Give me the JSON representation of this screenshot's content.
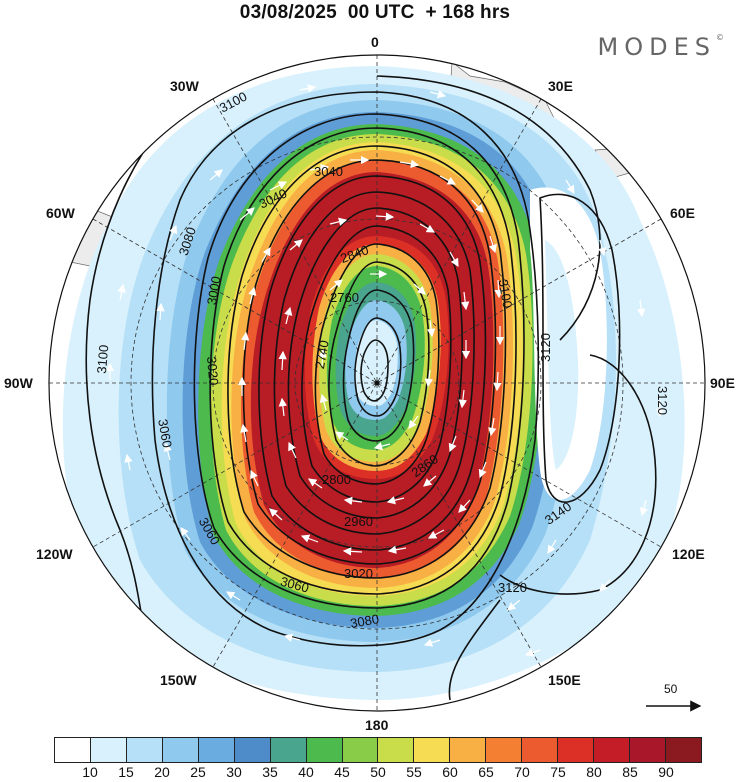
{
  "header": {
    "title": "03/08/2025  00 UTC  + 168 hrs",
    "brand": "MODES",
    "brand_mark": "©"
  },
  "map": {
    "projection": "south polar stereographic",
    "variable": "geopotential height contours with wind speed shading and wind vectors",
    "longitude_labels": {
      "lon_0": "0",
      "lon_30e": "30E",
      "lon_60e": "60E",
      "lon_90e": "90E",
      "lon_120e": "120E",
      "lon_150e": "150E",
      "lon_180": "180",
      "lon_150w": "150W",
      "lon_120w": "120W",
      "lon_90w": "90W",
      "lon_60w": "60W",
      "lon_30w": "30W"
    },
    "contour_labels": [
      "3100",
      "3040",
      "3040",
      "3080",
      "3100",
      "3120",
      "3140",
      "3120",
      "3100",
      "3120",
      "3080",
      "3060",
      "3020",
      "2960",
      "2860",
      "2800",
      "2760",
      "2740",
      "2840",
      "3000",
      "3060",
      "3060",
      "3020"
    ],
    "contour_levels": [
      2740,
      2760,
      2800,
      2840,
      2860,
      2960,
      3000,
      3020,
      3040,
      3060,
      3080,
      3100,
      3120,
      3140
    ],
    "reference_vector": {
      "label": "50"
    }
  },
  "legend": {
    "colors": [
      "#ffffff",
      "#d9f1fc",
      "#b5e0f7",
      "#8fc9ee",
      "#6aace0",
      "#4d8cc9",
      "#4aa58f",
      "#4cba4c",
      "#89cc47",
      "#c9dd4a",
      "#f6dc52",
      "#f8b045",
      "#f47f33",
      "#ec5a2f",
      "#dc3026",
      "#c41d27",
      "#a8182a",
      "#8a1a1f"
    ],
    "ticks": [
      "10",
      "15",
      "20",
      "25",
      "30",
      "35",
      "40",
      "45",
      "50",
      "55",
      "60",
      "65",
      "70",
      "75",
      "80",
      "85",
      "90"
    ]
  }
}
